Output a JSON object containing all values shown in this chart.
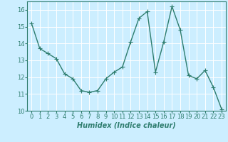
{
  "x": [
    0,
    1,
    2,
    3,
    4,
    5,
    6,
    7,
    8,
    9,
    10,
    11,
    12,
    13,
    14,
    15,
    16,
    17,
    18,
    19,
    20,
    21,
    22,
    23
  ],
  "y": [
    15.2,
    13.7,
    13.4,
    13.1,
    12.2,
    11.9,
    11.2,
    11.1,
    11.2,
    11.9,
    12.3,
    12.6,
    14.1,
    15.5,
    15.9,
    12.3,
    14.1,
    16.2,
    14.8,
    12.1,
    11.9,
    12.4,
    11.4,
    10.1
  ],
  "line_color": "#2e7d6e",
  "marker": "+",
  "markersize": 4,
  "linewidth": 1.0,
  "bg_color": "#cceeff",
  "grid_color": "#ffffff",
  "xlabel": "Humidex (Indice chaleur)",
  "xlabel_fontsize": 7,
  "tick_fontsize": 6,
  "xlim": [
    -0.5,
    23.5
  ],
  "ylim": [
    10,
    16.5
  ],
  "yticks": [
    10,
    11,
    12,
    13,
    14,
    15,
    16
  ],
  "xticks": [
    0,
    1,
    2,
    3,
    4,
    5,
    6,
    7,
    8,
    9,
    10,
    11,
    12,
    13,
    14,
    15,
    16,
    17,
    18,
    19,
    20,
    21,
    22,
    23
  ]
}
